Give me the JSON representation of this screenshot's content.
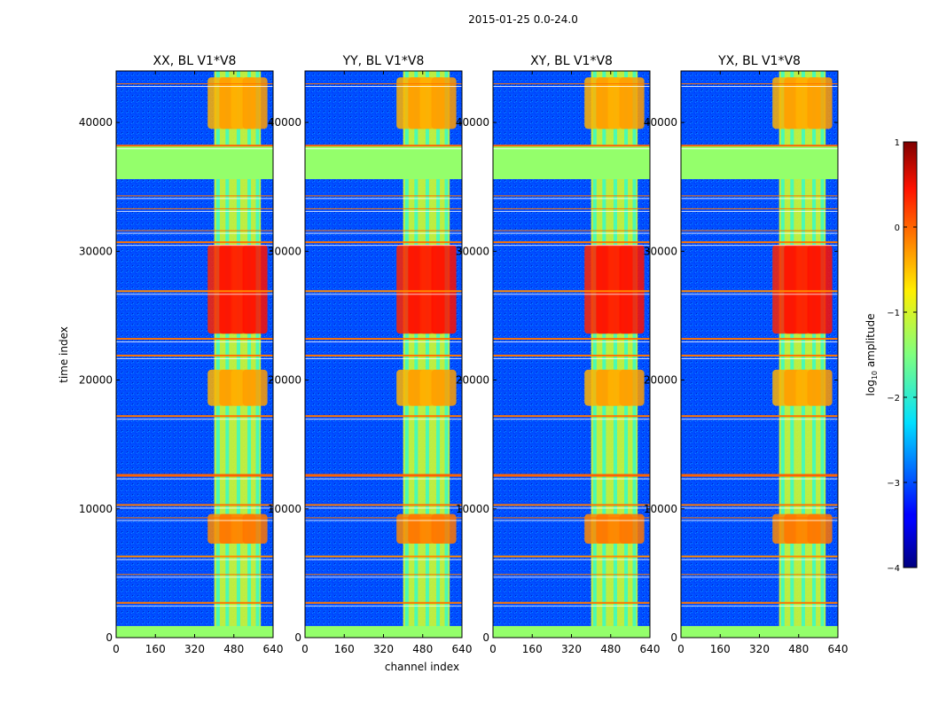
{
  "figure": {
    "suptitle": "2015-01-25 0.0-24.0",
    "xlabel": "channel index",
    "ylabel": "time index"
  },
  "chart_data": {
    "type": "heatmap",
    "x_range": [
      0,
      640
    ],
    "y_range": [
      0,
      44000
    ],
    "x_ticks": [
      0,
      160,
      320,
      480,
      640
    ],
    "y_ticks": [
      0,
      10000,
      20000,
      30000,
      40000
    ],
    "panels": [
      {
        "title": "XX, BL V1*V8"
      },
      {
        "title": "YY, BL V1*V8"
      },
      {
        "title": "XY, BL V1*V8"
      },
      {
        "title": "YX, BL V1*V8"
      }
    ],
    "colorbar": {
      "label_prefix": "log",
      "label_sub": "10",
      "label_suffix": " amplitude",
      "range": [
        -4,
        1
      ],
      "ticks": [
        1,
        0,
        -1,
        -2,
        -3,
        -4
      ],
      "tick_labels": [
        "1",
        "0",
        "−1",
        "−2",
        "−3",
        "−4"
      ],
      "colormap": "jet"
    },
    "structure": {
      "band_channels": [
        400,
        590
      ],
      "band_level": -1.1,
      "background_level": -3.0,
      "flagged_blocks": [
        {
          "t0": 0,
          "t1": 900,
          "level": -1.4
        },
        {
          "t0": 35600,
          "t1": 38200,
          "level": -1.4
        }
      ],
      "flag_lines": [
        {
          "t": 2700,
          "level": -0.2,
          "weight": 2
        },
        {
          "t": 4900,
          "level": -0.2,
          "weight": 1
        },
        {
          "t": 6300,
          "level": -0.3,
          "weight": 2
        },
        {
          "t": 9300,
          "level": -0.2,
          "weight": 1
        },
        {
          "t": 10300,
          "level": -0.2,
          "weight": 2
        },
        {
          "t": 12600,
          "level": -0.1,
          "weight": 3
        },
        {
          "t": 17200,
          "level": -0.2,
          "weight": 2
        },
        {
          "t": 21900,
          "level": -0.2,
          "weight": 2
        },
        {
          "t": 23200,
          "level": -0.2,
          "weight": 2
        },
        {
          "t": 26900,
          "level": -0.3,
          "weight": 2
        },
        {
          "t": 30700,
          "level": -0.2,
          "weight": 2
        },
        {
          "t": 31600,
          "level": -0.2,
          "weight": 1
        },
        {
          "t": 33300,
          "level": -0.2,
          "weight": 1
        },
        {
          "t": 34300,
          "level": -0.2,
          "weight": 1
        },
        {
          "t": 38200,
          "level": -0.1,
          "weight": 2
        },
        {
          "t": 43000,
          "level": -0.2,
          "weight": 1
        }
      ],
      "hot_regions": [
        {
          "t0": 23600,
          "t1": 30500,
          "level": 0.2
        },
        {
          "t0": 7300,
          "t1": 9600,
          "level": -0.3
        },
        {
          "t0": 18000,
          "t1": 20800,
          "level": -0.5
        },
        {
          "t0": 39500,
          "t1": 43500,
          "level": -0.5
        }
      ]
    }
  }
}
